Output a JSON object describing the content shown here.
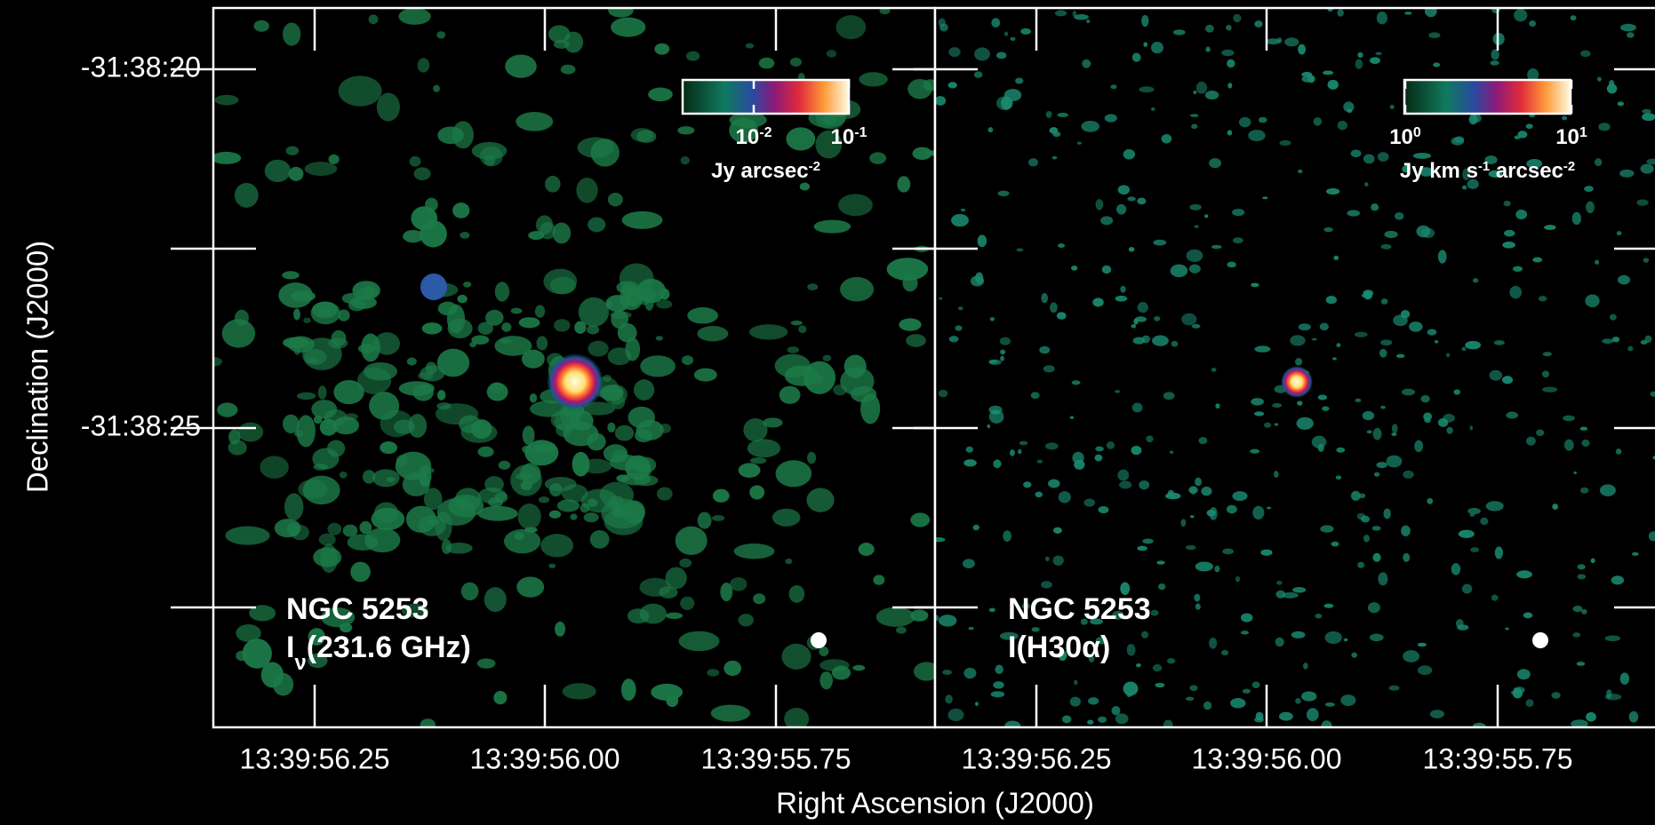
{
  "figure": {
    "ylabel": "Declination (J2000)",
    "xlabel": "Right Ascension (J2000)",
    "yticks": [
      "-31:38:20",
      "-31:38:25"
    ],
    "panels": [
      {
        "xticks": [
          "13:39:56.25",
          "13:39:56.00",
          "13:39:55.75"
        ],
        "label": "NGC 5253",
        "quantity": [
          {
            "text": "I"
          },
          {
            "sub": "ν"
          },
          {
            "text": "(231.6 GHz)"
          }
        ],
        "colorbar": {
          "ticks": [
            {
              "base": "10",
              "exp": "-2"
            },
            {
              "base": "10",
              "exp": "-1"
            }
          ],
          "unit": [
            {
              "text": "Jy arcsec"
            },
            {
              "sup": "-2"
            }
          ]
        }
      },
      {
        "xticks": [
          "13:39:56.25",
          "13:39:56.00",
          "13:39:55.75"
        ],
        "label": "NGC 5253",
        "quantity": [
          {
            "text": "I(H30α)"
          }
        ],
        "colorbar": {
          "ticks": [
            {
              "base": "10",
              "exp": "0"
            },
            {
              "base": "10",
              "exp": "1"
            }
          ],
          "unit": [
            {
              "text": "Jy km s"
            },
            {
              "sup": "-1"
            },
            {
              "text": " arcsec"
            },
            {
              "sup": "-2"
            }
          ]
        }
      }
    ]
  }
}
